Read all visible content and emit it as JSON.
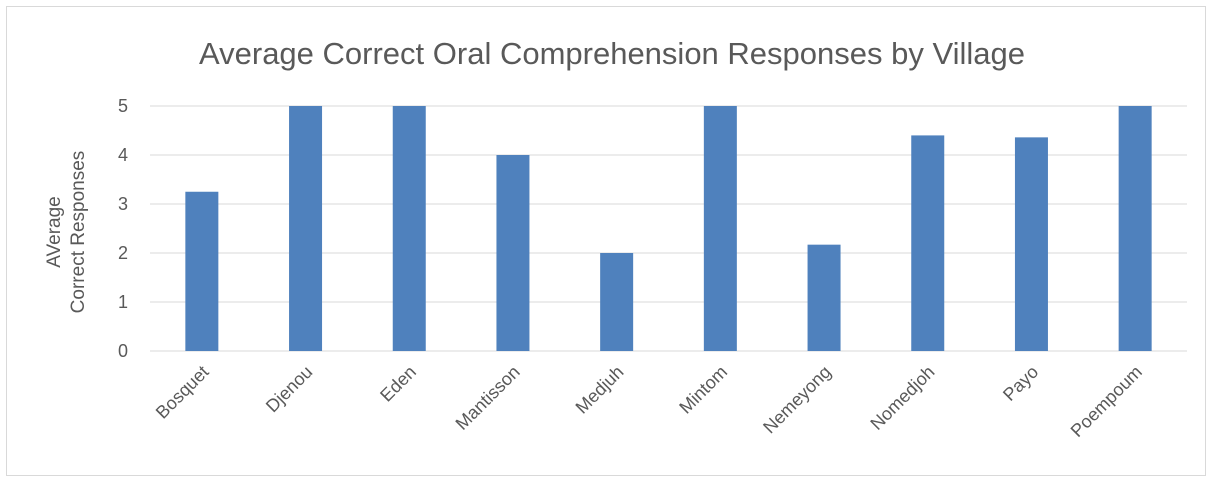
{
  "chart_data": {
    "type": "bar",
    "title": "Average Correct Oral Comprehension Responses by Village",
    "ylabel_lines": [
      "AVerage",
      "Correct Responses"
    ],
    "xlabel": "",
    "categories": [
      "Bosquet",
      "Djenou",
      "Eden",
      "Mantisson",
      "Medjuh",
      "Mintom",
      "Nemeyong",
      "Nomedjoh",
      "Payo",
      "Poempoum"
    ],
    "values": [
      3.25,
      5,
      5,
      4,
      2,
      5,
      2.17,
      4.4,
      4.36,
      5
    ],
    "ylim": [
      0,
      5
    ],
    "yticks": [
      "0",
      "1",
      "2",
      "3",
      "4",
      "5"
    ],
    "grid": true,
    "legend": "none",
    "bar_color": "#4f81bd",
    "grid_color": "#d9d9d9"
  }
}
